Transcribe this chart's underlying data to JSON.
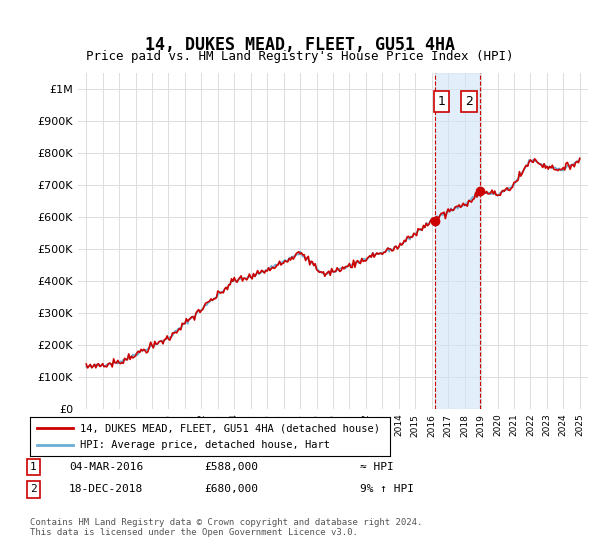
{
  "title": "14, DUKES MEAD, FLEET, GU51 4HA",
  "subtitle": "Price paid vs. HM Land Registry's House Price Index (HPI)",
  "footer": "Contains HM Land Registry data © Crown copyright and database right 2024.\nThis data is licensed under the Open Government Licence v3.0.",
  "legend_line1": "14, DUKES MEAD, FLEET, GU51 4HA (detached house)",
  "legend_line2": "HPI: Average price, detached house, Hart",
  "transaction1_label": "1",
  "transaction1_date": "04-MAR-2016",
  "transaction1_price": "£588,000",
  "transaction1_hpi": "≈ HPI",
  "transaction2_label": "2",
  "transaction2_date": "18-DEC-2018",
  "transaction2_price": "£680,000",
  "transaction2_hpi": "9% ↑ HPI",
  "hpi_color": "#6baed6",
  "price_color": "#cc0000",
  "bg_color": "#ffffff",
  "grid_color": "#dddddd",
  "ylim": [
    0,
    1050000
  ],
  "yticks": [
    0,
    100000,
    200000,
    300000,
    400000,
    500000,
    600000,
    700000,
    800000,
    900000,
    1000000
  ],
  "ytick_labels": [
    "£0",
    "£100K",
    "£200K",
    "£300K",
    "£400K",
    "£500K",
    "£600K",
    "£700K",
    "£800K",
    "£900K",
    "£1M"
  ],
  "xlim_start": 1994.5,
  "xlim_end": 2025.5,
  "transaction1_x": 2016.17,
  "transaction1_y": 588000,
  "transaction2_x": 2018.96,
  "transaction2_y": 680000,
  "shade_x1": 2016.17,
  "shade_x2": 2018.96
}
